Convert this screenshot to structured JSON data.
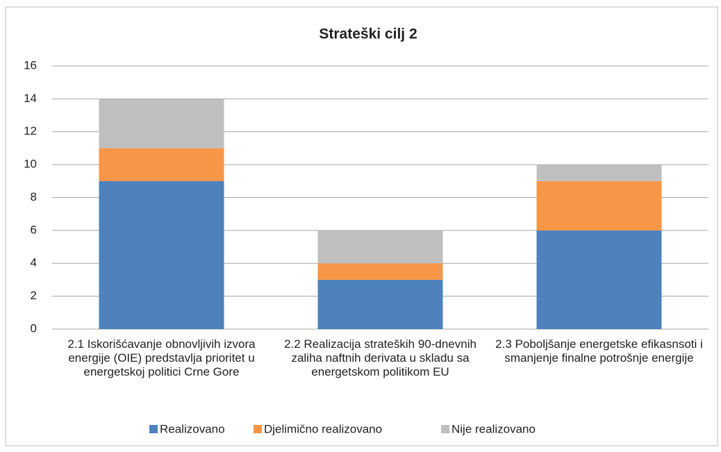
{
  "chart_data": {
    "type": "stacked_bar",
    "title": "Strateški cilj 2",
    "categories": [
      "2.1 Iskorišćavanje obnovljivih izvora energije (OIE) predstavlja prioritet u energetskoj politici Crne Gore",
      "2.2 Realizacija strateških 90-dnevnih zaliha naftnih derivata u skladu sa energetskom politikom EU",
      "2.3 Poboljšanje energetske efikasnsoti i smanjenje finalne potrošnje energije"
    ],
    "series": [
      {
        "name": "Realizovano",
        "color": "#4f81bd",
        "values": [
          9,
          3,
          6
        ]
      },
      {
        "name": "Djelimično realizovano",
        "color": "#f79646",
        "values": [
          2,
          1,
          3
        ]
      },
      {
        "name": "Nije realizovano",
        "color": "#bfbfbf",
        "values": [
          3,
          2,
          1
        ]
      }
    ],
    "ylim": [
      0,
      16
    ],
    "yticks": [
      0,
      2,
      4,
      6,
      8,
      10,
      12,
      14,
      16
    ],
    "grid": true,
    "legend": "bottom"
  }
}
